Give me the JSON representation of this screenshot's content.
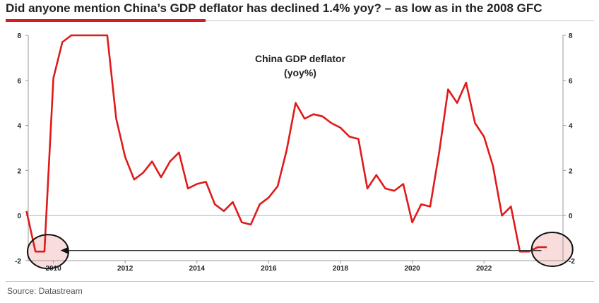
{
  "headline": "Did anyone mention China’s GDP deflator has declined 1.4% yoy? – as low as in the 2008 GFC",
  "source": "Source: Datastream",
  "colors": {
    "accent": "#d71921",
    "line": "#e01a1a",
    "highlight_fill": "#f9dcdc"
  },
  "chart_data": {
    "type": "line",
    "title": "China GDP deflator",
    "subtitle": "(yoy%)",
    "xlabel": "",
    "ylabel": "",
    "xlim": [
      2009.3,
      2024.2
    ],
    "ylim": [
      -2,
      8
    ],
    "x_ticks": [
      2010,
      2012,
      2014,
      2016,
      2018,
      2020,
      2022
    ],
    "y_ticks_left": [
      8,
      6,
      4,
      2,
      0,
      -2
    ],
    "y_ticks_right": [
      8,
      6,
      4,
      2,
      0,
      -2
    ],
    "grid": false,
    "reference_line": 0,
    "series": [
      {
        "x": [
          2009.25,
          2009.5,
          2009.75,
          2010.0,
          2010.25,
          2010.5,
          2010.75,
          2011.0,
          2011.25,
          2011.5,
          2011.75,
          2012.0,
          2012.25,
          2012.5,
          2012.75,
          2013.0,
          2013.25,
          2013.5,
          2013.75,
          2014.0,
          2014.25,
          2014.5,
          2014.75,
          2015.0,
          2015.25,
          2015.5,
          2015.75,
          2016.0,
          2016.25,
          2016.5,
          2016.75,
          2017.0,
          2017.25,
          2017.5,
          2017.75,
          2018.0,
          2018.25,
          2018.5,
          2018.75,
          2019.0,
          2019.25,
          2019.5,
          2019.75,
          2020.0,
          2020.25,
          2020.5,
          2020.75,
          2021.0,
          2021.25,
          2021.5,
          2021.75,
          2022.0,
          2022.25,
          2022.5,
          2022.75,
          2023.0,
          2023.25,
          2023.5,
          2023.75
        ],
        "y": [
          0.2,
          -1.6,
          -1.6,
          6.1,
          7.7,
          8.0,
          8.5,
          8.5,
          8.3,
          8.0,
          4.3,
          2.6,
          1.6,
          1.9,
          2.4,
          1.7,
          2.4,
          2.8,
          1.2,
          1.4,
          1.5,
          0.5,
          0.2,
          0.6,
          -0.3,
          -0.4,
          0.5,
          0.8,
          1.3,
          2.9,
          5.0,
          4.3,
          4.5,
          4.4,
          4.1,
          3.9,
          3.5,
          3.4,
          1.2,
          1.8,
          1.2,
          1.1,
          1.4,
          -0.3,
          0.5,
          0.4,
          2.8,
          5.6,
          5.0,
          5.9,
          4.1,
          3.5,
          2.2,
          0.0,
          0.4,
          -1.6,
          -1.6,
          -1.4,
          -1.4
        ]
      }
    ],
    "annotations": [
      {
        "type": "circle",
        "x": 2009.85,
        "y": -1.6
      },
      {
        "type": "circle",
        "x": 2023.9,
        "y": -1.5
      },
      {
        "type": "arrow",
        "from_x": 2023.6,
        "to_x": 2010.2,
        "y": -1.55
      }
    ]
  }
}
